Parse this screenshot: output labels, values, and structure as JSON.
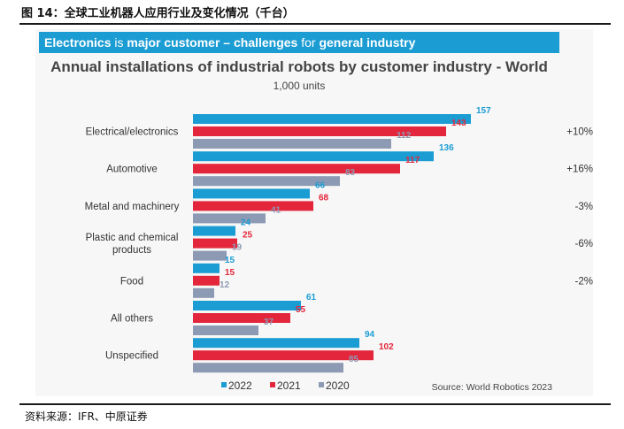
{
  "figure_title": "图 14：全球工业机器人应用行业及变化情况（千台）",
  "banner": {
    "part1": "Electronics",
    "part2": " is ",
    "part3": "major customer – challenges",
    "part4": " for ",
    "part5": "general industry"
  },
  "source_line": "资料来源：IFR、中原证券",
  "colors": {
    "s2022": "#1b9cd3",
    "s2021": "#e3263b",
    "s2020": "#8d9ab3",
    "banner": "#1b9cd3"
  },
  "chart_data": {
    "type": "bar",
    "orientation": "horizontal",
    "title": "Annual installations of industrial robots by customer industry - World",
    "subtitle": "1,000 units",
    "categories": [
      "Electrical/electronics",
      "Automotive",
      "Metal and machinery",
      "Plastic and chemical products",
      "Food",
      "All others",
      "Unspecified"
    ],
    "series": [
      {
        "name": "2022",
        "values": [
          157,
          136,
          66,
          24,
          15,
          61,
          94
        ]
      },
      {
        "name": "2021",
        "values": [
          143,
          117,
          68,
          25,
          15,
          55,
          102
        ]
      },
      {
        "name": "2020",
        "values": [
          112,
          83,
          41,
          19,
          12,
          37,
          85
        ]
      }
    ],
    "growth": [
      "+10%",
      "+16%",
      "-3%",
      "-6%",
      "-2%",
      "",
      ""
    ],
    "xlim": [
      0,
      160
    ],
    "legend": "bottom-left",
    "source": "Source: World Robotics 2023"
  }
}
